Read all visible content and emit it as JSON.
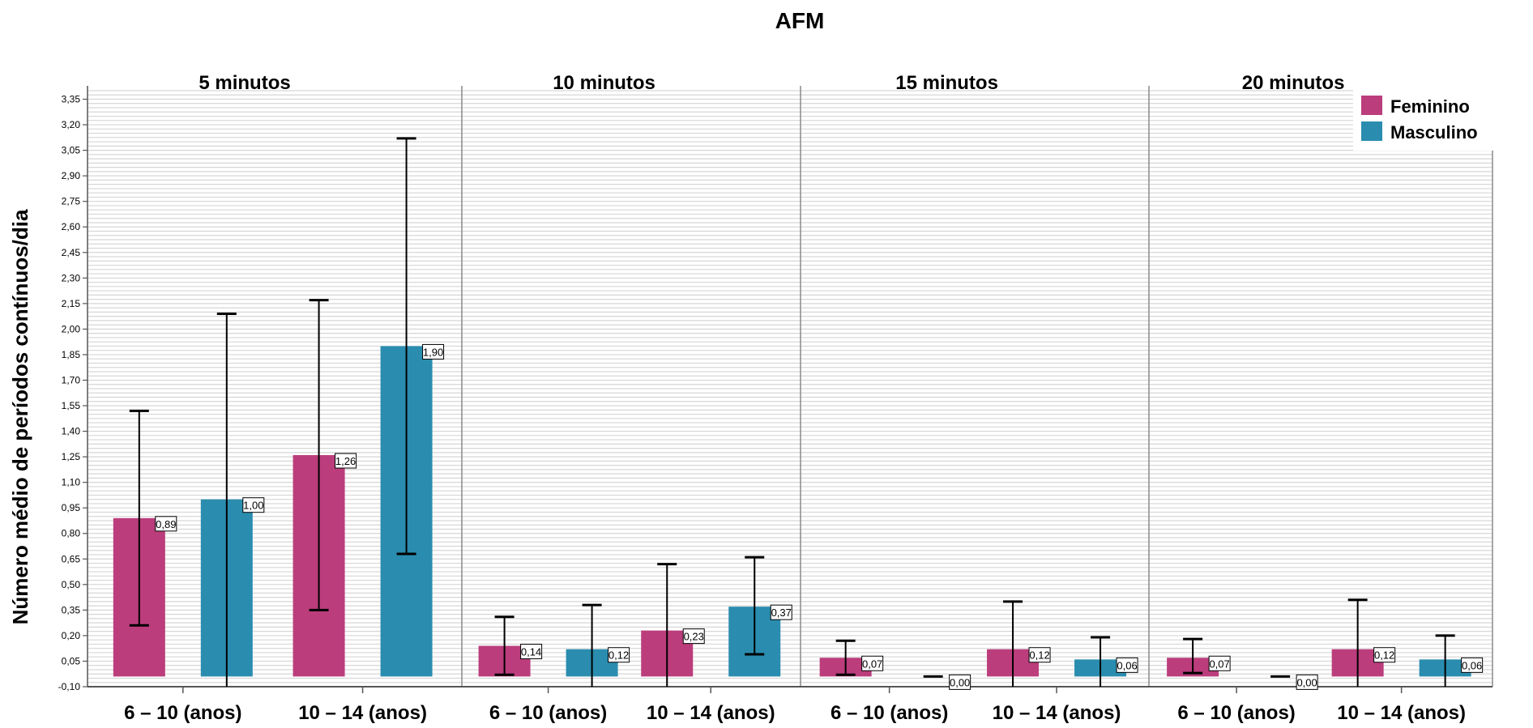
{
  "chart_data": {
    "type": "bar",
    "title": "AFM",
    "ylabel": "Número médio de períodos contínuos/dia",
    "xlabel": "",
    "ylim": [
      -0.1,
      3.4
    ],
    "yticks": [
      "-0,10",
      "0,05",
      "0,20",
      "0,35",
      "0,50",
      "0,65",
      "0,80",
      "0,95",
      "1,10",
      "1,25",
      "1,40",
      "1,55",
      "1,70",
      "1,85",
      "2,00",
      "2,15",
      "2,30",
      "2,45",
      "2,60",
      "2,75",
      "2,90",
      "3,05",
      "3,20",
      "3,35"
    ],
    "grid": true,
    "legend_position": "top-right",
    "series": [
      {
        "name": "Feminino",
        "color": "#bb3d7c"
      },
      {
        "name": "Masculino",
        "color": "#2a8daf"
      }
    ],
    "panels": [
      {
        "title": "5 minutos",
        "categories": [
          "6 – 10 (anos)",
          "10 – 14 (anos)"
        ],
        "bars": [
          [
            {
              "value": 0.89,
              "label": "0,89",
              "err_low": 0.26,
              "err_high": 1.52
            },
            {
              "value": 1.0,
              "label": "1,00",
              "err_low": -0.1,
              "err_high": 2.09
            }
          ],
          [
            {
              "value": 1.26,
              "label": "1,26",
              "err_low": 0.35,
              "err_high": 2.17
            },
            {
              "value": 1.9,
              "label": "1,90",
              "err_low": 0.68,
              "err_high": 3.12
            }
          ]
        ]
      },
      {
        "title": "10 minutos",
        "categories": [
          "6 – 10 (anos)",
          "10 – 14 (anos)"
        ],
        "bars": [
          [
            {
              "value": 0.14,
              "label": "0,14",
              "err_low": -0.03,
              "err_high": 0.31
            },
            {
              "value": 0.12,
              "label": "0,12",
              "err_low": -0.1,
              "err_high": 0.38
            }
          ],
          [
            {
              "value": 0.23,
              "label": "0,23",
              "err_low": -0.1,
              "err_high": 0.62
            },
            {
              "value": 0.37,
              "label": "0,37",
              "err_low": 0.09,
              "err_high": 0.66
            }
          ]
        ]
      },
      {
        "title": "15 minutos",
        "categories": [
          "6 – 10 (anos)",
          "10 – 14 (anos)"
        ],
        "bars": [
          [
            {
              "value": 0.07,
              "label": "0,07",
              "err_low": -0.03,
              "err_high": 0.17
            },
            {
              "value": 0.0,
              "label": "0,00",
              "err_low": 0.0,
              "err_high": 0.0
            }
          ],
          [
            {
              "value": 0.12,
              "label": "0,12",
              "err_low": -0.1,
              "err_high": 0.4
            },
            {
              "value": 0.06,
              "label": "0,06",
              "err_low": -0.1,
              "err_high": 0.19
            }
          ]
        ]
      },
      {
        "title": "20 minutos",
        "categories": [
          "6 – 10 (anos)",
          "10 – 14 (anos)"
        ],
        "bars": [
          [
            {
              "value": 0.07,
              "label": "0,07",
              "err_low": -0.02,
              "err_high": 0.18
            },
            {
              "value": 0.0,
              "label": "0,00",
              "err_low": 0.0,
              "err_high": 0.0
            }
          ],
          [
            {
              "value": 0.12,
              "label": "0,12",
              "err_low": -0.1,
              "err_high": 0.41
            },
            {
              "value": 0.06,
              "label": "0,06",
              "err_low": -0.1,
              "err_high": 0.2
            }
          ]
        ]
      }
    ]
  }
}
